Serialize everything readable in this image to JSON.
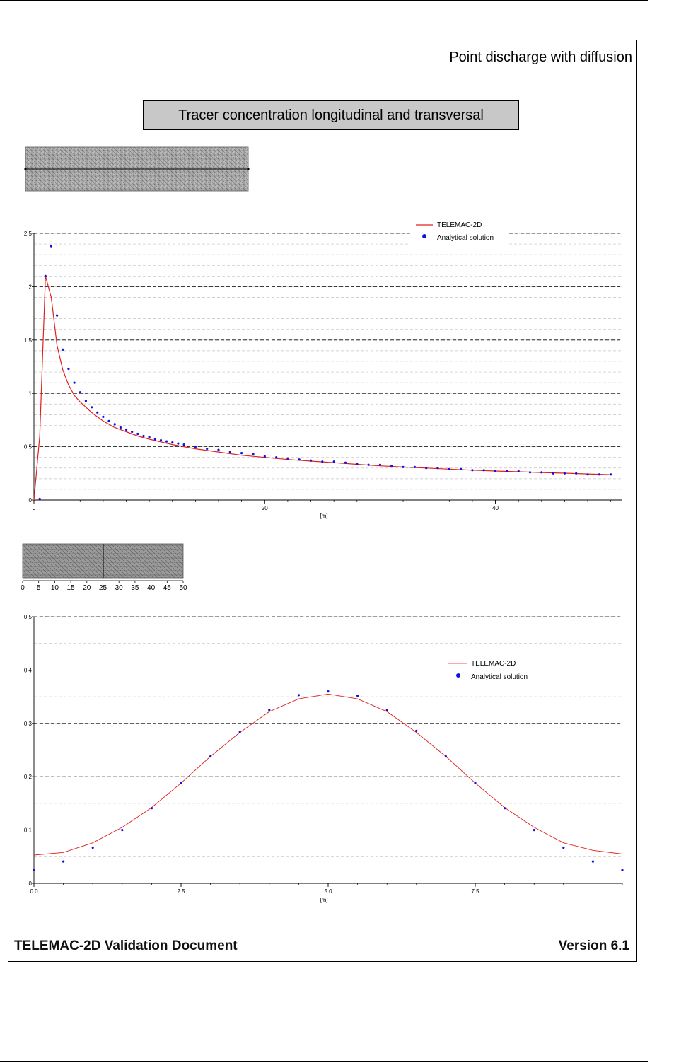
{
  "document": {
    "page_title": "Point discharge with diffusion",
    "chart_heading": "Tracer concentration longitudinal and transversal",
    "footer_left": "TELEMAC-2D Validation Document",
    "footer_right": "Version 6.1"
  },
  "colors": {
    "telemac_line": "#e02020",
    "analytical_points": "#1010e0",
    "mesh_fill": "#a8a8a8",
    "mesh_fill_dark": "#8c8c8c"
  },
  "mesh_strip_2": {
    "ticks": [
      "0",
      "5",
      "10",
      "15",
      "20",
      "25",
      "30",
      "35",
      "40",
      "45",
      "50"
    ]
  },
  "chart_data": [
    {
      "type": "line",
      "title": "",
      "xlabel": "[m]",
      "ylabel": "",
      "xlim": [
        0,
        51
      ],
      "ylim": [
        0,
        2.5
      ],
      "x_ticks": [
        "0",
        "20",
        "40"
      ],
      "y_ticks": [
        "0",
        "0.5",
        "1",
        "1.5",
        "2",
        "2.5"
      ],
      "legend_position": "top-right",
      "grid": true,
      "series": [
        {
          "name": "TELEMAC-2D",
          "style": "line",
          "x": [
            0,
            0.5,
            1,
            1.5,
            2,
            2.5,
            3,
            3.5,
            4,
            5,
            6,
            7,
            8,
            9,
            10,
            12,
            14,
            16,
            18,
            20,
            22,
            24,
            26,
            28,
            30,
            32,
            34,
            36,
            38,
            40,
            42,
            44,
            46,
            48,
            50
          ],
          "values": [
            0,
            0.6,
            2.1,
            1.9,
            1.45,
            1.22,
            1.08,
            0.98,
            0.92,
            0.82,
            0.74,
            0.68,
            0.64,
            0.6,
            0.57,
            0.52,
            0.48,
            0.45,
            0.42,
            0.4,
            0.38,
            0.365,
            0.35,
            0.335,
            0.32,
            0.31,
            0.3,
            0.29,
            0.28,
            0.272,
            0.265,
            0.258,
            0.252,
            0.245,
            0.238
          ]
        },
        {
          "name": "Analytical solution",
          "style": "points",
          "x": [
            0.5,
            1,
            1.5,
            2,
            2.5,
            3,
            3.5,
            4,
            4.5,
            5,
            5.5,
            6,
            6.5,
            7,
            7.5,
            8,
            8.5,
            9,
            9.5,
            10,
            10.5,
            11,
            11.5,
            12,
            12.5,
            13,
            14,
            15,
            16,
            17,
            18,
            19,
            20,
            21,
            22,
            23,
            24,
            25,
            26,
            27,
            28,
            29,
            30,
            31,
            32,
            33,
            34,
            35,
            36,
            37,
            38,
            39,
            40,
            41,
            42,
            43,
            44,
            45,
            46,
            47,
            48,
            49,
            50
          ],
          "values": [
            0.01,
            2.1,
            2.38,
            1.73,
            1.41,
            1.23,
            1.1,
            1.01,
            0.93,
            0.87,
            0.82,
            0.78,
            0.74,
            0.71,
            0.68,
            0.66,
            0.64,
            0.62,
            0.6,
            0.59,
            0.57,
            0.56,
            0.55,
            0.54,
            0.53,
            0.52,
            0.5,
            0.48,
            0.47,
            0.45,
            0.44,
            0.43,
            0.41,
            0.4,
            0.39,
            0.38,
            0.37,
            0.36,
            0.36,
            0.35,
            0.34,
            0.33,
            0.33,
            0.32,
            0.31,
            0.31,
            0.3,
            0.3,
            0.29,
            0.29,
            0.28,
            0.28,
            0.27,
            0.27,
            0.27,
            0.26,
            0.26,
            0.25,
            0.25,
            0.25,
            0.24,
            0.24,
            0.24
          ]
        }
      ]
    },
    {
      "type": "line",
      "title": "",
      "xlabel": "[m]",
      "ylabel": "",
      "xlim": [
        0,
        10
      ],
      "ylim": [
        0,
        0.5
      ],
      "x_ticks": [
        "0.0",
        "2.5",
        "5.0",
        "7.5"
      ],
      "y_ticks": [
        "0",
        "0.1",
        "0.2",
        "0.3",
        "0.4",
        "0.5"
      ],
      "legend_position": "top-right",
      "grid": true,
      "series": [
        {
          "name": "TELEMAC-2D",
          "style": "line",
          "x": [
            0,
            0.5,
            1,
            1.5,
            2,
            2.5,
            3,
            3.5,
            4,
            4.5,
            5,
            5.5,
            6,
            6.5,
            7,
            7.5,
            8,
            8.5,
            9,
            9.5,
            10
          ],
          "values": [
            0.053,
            0.058,
            0.076,
            0.105,
            0.142,
            0.188,
            0.238,
            0.283,
            0.322,
            0.346,
            0.355,
            0.346,
            0.322,
            0.283,
            0.238,
            0.188,
            0.142,
            0.105,
            0.076,
            0.062,
            0.055
          ]
        },
        {
          "name": "Analytical solution",
          "style": "points",
          "x": [
            0,
            0.5,
            1,
            1.5,
            2,
            2.5,
            3,
            3.5,
            4,
            4.5,
            5,
            5.5,
            6,
            6.5,
            7,
            7.5,
            8,
            8.5,
            9,
            9.5,
            10
          ],
          "values": [
            0.025,
            0.041,
            0.067,
            0.1,
            0.141,
            0.188,
            0.238,
            0.284,
            0.325,
            0.353,
            0.36,
            0.352,
            0.325,
            0.286,
            0.238,
            0.188,
            0.141,
            0.1,
            0.067,
            0.041,
            0.025
          ]
        }
      ]
    }
  ]
}
